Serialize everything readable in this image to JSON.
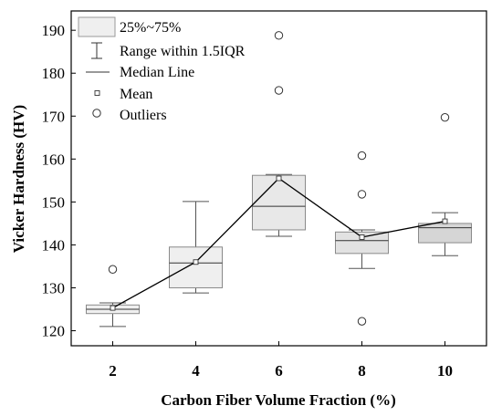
{
  "chart_data": {
    "type": "box",
    "xlabel": "Carbon Fiber Volume Fraction (%)",
    "ylabel": "Vicker Hardness (HV)",
    "xlim": [
      1,
      11
    ],
    "ylim": [
      116.5,
      194.5
    ],
    "x_ticks": [
      2,
      4,
      6,
      8,
      10
    ],
    "y_ticks": [
      120,
      130,
      140,
      150,
      160,
      170,
      180,
      190
    ],
    "legend": {
      "position": "top-left",
      "items": [
        {
          "key": "box",
          "label": "25%~75%"
        },
        {
          "key": "whisker",
          "label": "Range within 1.5IQR"
        },
        {
          "key": "median",
          "label": "Median Line"
        },
        {
          "key": "mean",
          "label": "Mean"
        },
        {
          "key": "outlier",
          "label": "Outliers"
        }
      ]
    },
    "colors": {
      "box_light": "#efefef",
      "box_mid": "#e2e2e2",
      "box_dark": "#d6d6d6",
      "line": "#000000",
      "whisker": "#555555"
    },
    "boxes": [
      {
        "x": 2,
        "whisker_low": 121.0,
        "q1": 124.0,
        "median": 125.0,
        "q3": 126.0,
        "whisker_high": 126.5,
        "mean": 125.3,
        "outliers": [
          134.3
        ],
        "fill": "#efefef"
      },
      {
        "x": 4,
        "whisker_low": 128.8,
        "q1": 130.0,
        "median": 135.8,
        "q3": 139.5,
        "whisker_high": 150.1,
        "mean": 136.0,
        "outliers": [],
        "fill": "#efefef"
      },
      {
        "x": 6,
        "whisker_low": 142.0,
        "q1": 143.5,
        "median": 149.0,
        "q3": 156.2,
        "whisker_high": 156.4,
        "mean": 155.5,
        "outliers": [
          176.0,
          188.8
        ],
        "fill": "#e8e8e8"
      },
      {
        "x": 8,
        "whisker_low": 134.5,
        "q1": 138.0,
        "median": 141.0,
        "q3": 143.0,
        "whisker_high": 143.5,
        "mean": 141.8,
        "outliers": [
          122.2,
          151.8,
          160.8
        ],
        "fill": "#e2e2e2"
      },
      {
        "x": 10,
        "whisker_low": 137.5,
        "q1": 140.5,
        "median": 144.0,
        "q3": 145.0,
        "whisker_high": 147.5,
        "mean": 145.5,
        "outliers": [
          169.7
        ],
        "fill": "#d6d6d6"
      }
    ],
    "mean_line": true
  }
}
